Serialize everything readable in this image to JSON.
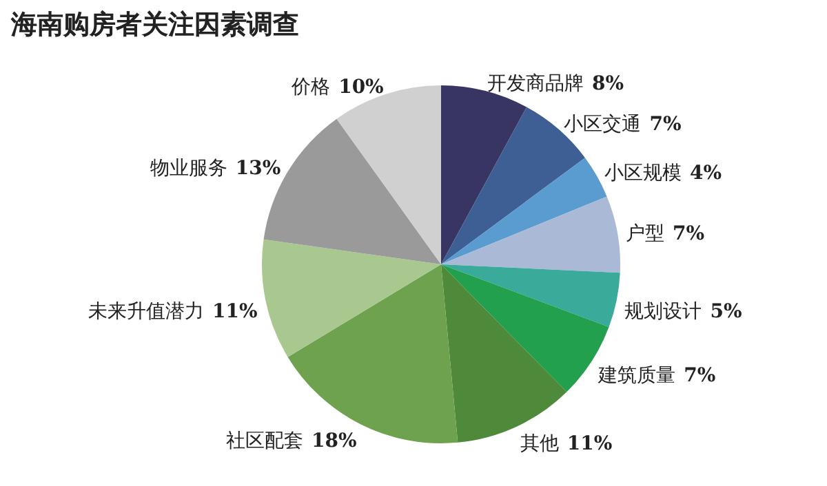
{
  "chart_data": {
    "type": "pie",
    "title": "海南购房者关注因素调查",
    "categories": [
      "开发商品牌",
      "小区交通",
      "小区规模",
      "户型",
      "规划设计",
      "建筑质量",
      "其他",
      "社区配套",
      "未来升值潜力",
      "物业服务",
      "价格"
    ],
    "values": [
      8,
      7,
      4,
      7,
      5,
      7,
      11,
      18,
      11,
      13,
      10
    ],
    "value_labels": [
      "8%",
      "7%",
      "4%",
      "7%",
      "5%",
      "7%",
      "11%",
      "18%",
      "11%",
      "13%",
      "10%"
    ],
    "colors": [
      "#393563",
      "#3e5f93",
      "#5a9bd0",
      "#a9b9d6",
      "#3aaa9a",
      "#22a04e",
      "#4e8a3a",
      "#6ea24e",
      "#a8c890",
      "#9a9a9a",
      "#d0d0d0"
    ]
  }
}
